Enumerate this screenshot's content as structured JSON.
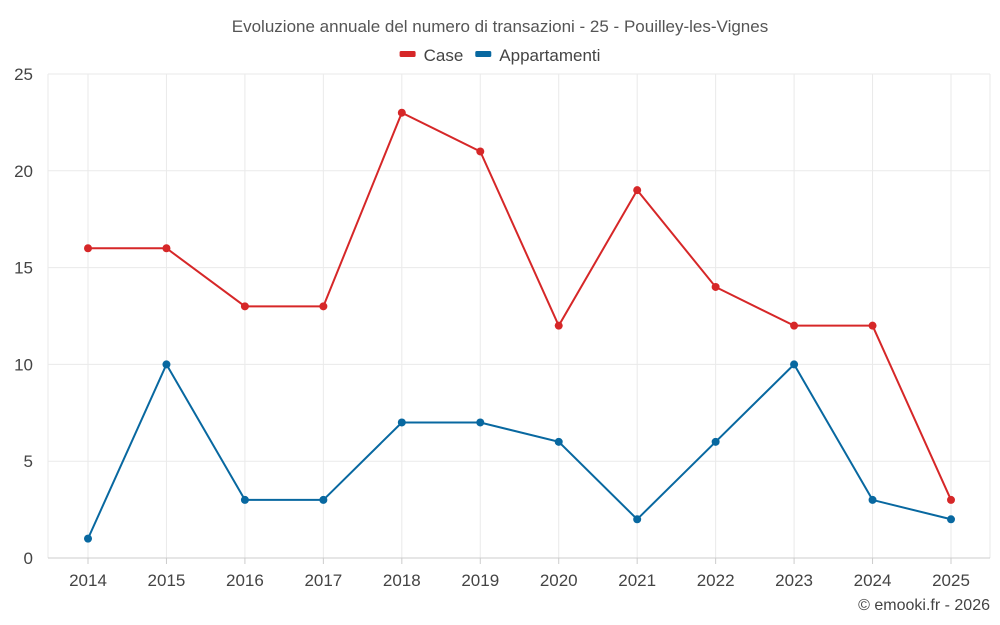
{
  "chart_data": {
    "type": "line",
    "title": "Evoluzione annuale del numero di transazioni - 25 - Pouilley-les-Vignes",
    "categories": [
      "2014",
      "2015",
      "2016",
      "2017",
      "2018",
      "2019",
      "2020",
      "2021",
      "2022",
      "2023",
      "2024",
      "2025"
    ],
    "series": [
      {
        "name": "Case",
        "color": "#d62728",
        "values": [
          16,
          16,
          13,
          13,
          23,
          21,
          12,
          19,
          14,
          12,
          12,
          3
        ]
      },
      {
        "name": "Appartamenti",
        "color": "#0868a0",
        "values": [
          1,
          10,
          3,
          3,
          7,
          7,
          6,
          2,
          6,
          10,
          3,
          2
        ]
      }
    ],
    "ylim": [
      0,
      25
    ],
    "yticks": [
      0,
      5,
      10,
      15,
      20,
      25
    ],
    "xlabel": "",
    "ylabel": "",
    "grid": true,
    "legend_position": "top-center"
  },
  "credit": "© emooki.fr - 2026"
}
